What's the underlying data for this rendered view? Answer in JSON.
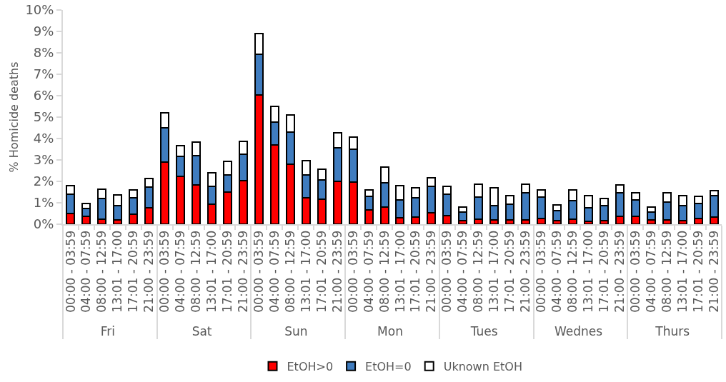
{
  "chart_data": {
    "type": "bar",
    "stacked": true,
    "ylabel": "% Homicide deaths",
    "categories": [
      "00:00 - 03:59",
      "04:00 - 07:59",
      "08:00 - 12:59",
      "13:01 - 17:00",
      "17:01 - 20:59",
      "21:00 - 23:59",
      "00:00 - 03:59",
      "04:00 - 07:59",
      "08:00 - 12:59",
      "13:01 - 17:00",
      "17:01 - 20:59",
      "21:00 - 23:59",
      "00:00 - 03:59",
      "04:00 - 07:59",
      "08:00 - 12:59",
      "13:01 - 17:00",
      "17:01 - 20:59",
      "21:00 - 23:59",
      "00:00 - 03:59",
      "04:00 - 07:59",
      "08:00 - 12:59",
      "13:01 - 17:00",
      "17:01 - 20:59",
      "21:00 - 23:59",
      "00:00 - 03:59",
      "04:00 - 07:59",
      "08:00 - 12:59",
      "13:01 - 17:00",
      "17:01 - 20:59",
      "21:00 - 23:59",
      "00:00 - 03:59",
      "04:00 - 07:59",
      "08:00 - 12:59",
      "13:01 - 17:00",
      "17:01 - 20:59",
      "21:00 - 23:59",
      "00:00 - 03:59",
      "04:00 - 07:59",
      "08:00 - 12:59",
      "13:01 - 17:00",
      "17:01 - 20:59",
      "21:00 - 23:59"
    ],
    "annotations": [
      "Fri",
      "Sat",
      "Sun",
      "Mon",
      "Tues",
      "Wednes",
      "Thurs"
    ],
    "series": [
      {
        "name": "EtOH>0",
        "color": "#ff0000",
        "values": [
          0.5,
          0.36,
          0.22,
          0.2,
          0.47,
          0.77,
          2.89,
          2.22,
          1.82,
          0.93,
          1.51,
          2.02,
          6.02,
          3.71,
          2.8,
          1.25,
          1.18,
          1.99,
          1.96,
          0.68,
          0.79,
          0.3,
          0.33,
          0.55,
          0.4,
          0.16,
          0.23,
          0.2,
          0.2,
          0.2,
          0.28,
          0.16,
          0.23,
          0.15,
          0.18,
          0.38,
          0.36,
          0.2,
          0.2,
          0.16,
          0.26,
          0.33
        ]
      },
      {
        "name": "EtOH=0",
        "color": "#3f7cbf",
        "values": [
          0.91,
          0.39,
          0.98,
          0.67,
          0.78,
          0.98,
          1.61,
          0.94,
          1.38,
          0.85,
          0.8,
          1.25,
          1.9,
          1.07,
          1.49,
          1.05,
          0.9,
          1.59,
          1.54,
          0.63,
          1.16,
          0.85,
          0.89,
          1.21,
          0.99,
          0.41,
          1.03,
          0.67,
          0.72,
          1.28,
          0.98,
          0.49,
          0.86,
          0.63,
          0.7,
          1.09,
          0.76,
          0.38,
          0.82,
          0.72,
          0.71,
          0.99
        ]
      },
      {
        "name": "Uknown EtOH",
        "color": "#ffffff",
        "values": [
          0.4,
          0.22,
          0.43,
          0.49,
          0.35,
          0.4,
          0.7,
          0.52,
          0.63,
          0.61,
          0.61,
          0.61,
          0.97,
          0.73,
          0.81,
          0.67,
          0.49,
          0.69,
          0.56,
          0.3,
          0.71,
          0.65,
          0.47,
          0.42,
          0.38,
          0.23,
          0.6,
          0.82,
          0.4,
          0.38,
          0.35,
          0.26,
          0.51,
          0.54,
          0.32,
          0.36,
          0.36,
          0.23,
          0.45,
          0.45,
          0.33,
          0.25
        ]
      }
    ],
    "ylim": [
      0,
      10
    ],
    "yticks": [
      {
        "value": 0,
        "label": "0%"
      },
      {
        "value": 1,
        "label": "1%"
      },
      {
        "value": 2,
        "label": "2%"
      },
      {
        "value": 3,
        "label": "3%"
      },
      {
        "value": 4,
        "label": "4%"
      },
      {
        "value": 5,
        "label": "5%"
      },
      {
        "value": 6,
        "label": "6%"
      },
      {
        "value": 7,
        "label": "7%"
      },
      {
        "value": 8,
        "label": "8%"
      },
      {
        "value": 9,
        "label": "9%"
      },
      {
        "value": 10,
        "label": "10%"
      }
    ],
    "grid": false,
    "legend": "bottom"
  }
}
